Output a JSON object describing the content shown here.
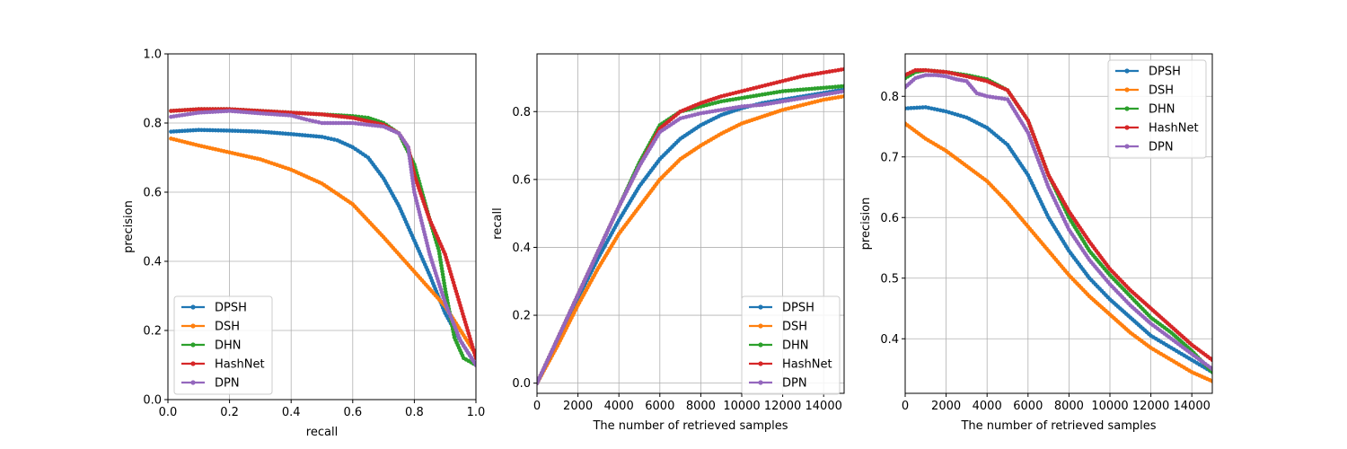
{
  "chart_data": [
    {
      "type": "line",
      "title": "",
      "xlabel": "recall",
      "ylabel": "precision",
      "xlim": [
        0.0,
        1.0
      ],
      "ylim": [
        0.0,
        1.0
      ],
      "xticks": [
        0.0,
        0.2,
        0.4,
        0.6,
        0.8,
        1.0
      ],
      "xtick_labels": [
        "0.0",
        "0.2",
        "0.4",
        "0.6",
        "0.8",
        "1.0"
      ],
      "yticks": [
        0.0,
        0.2,
        0.4,
        0.6,
        0.8,
        1.0
      ],
      "ytick_labels": [
        "0.0",
        "0.2",
        "0.4",
        "0.6",
        "0.8",
        "1.0"
      ],
      "grid": true,
      "legend_position": "lower-left",
      "series": [
        {
          "name": "DPSH",
          "color": "#1f77b4",
          "x": [
            0.01,
            0.1,
            0.2,
            0.3,
            0.4,
            0.5,
            0.55,
            0.6,
            0.65,
            0.7,
            0.75,
            0.8,
            0.85,
            0.9,
            0.95,
            1.0
          ],
          "y": [
            0.775,
            0.78,
            0.778,
            0.775,
            0.768,
            0.76,
            0.75,
            0.73,
            0.7,
            0.64,
            0.56,
            0.46,
            0.36,
            0.25,
            0.17,
            0.1
          ]
        },
        {
          "name": "DSH",
          "color": "#ff7f0e",
          "x": [
            0.01,
            0.1,
            0.2,
            0.3,
            0.4,
            0.5,
            0.6,
            0.7,
            0.8,
            0.9,
            0.95,
            1.0
          ],
          "y": [
            0.755,
            0.735,
            0.715,
            0.695,
            0.665,
            0.625,
            0.565,
            0.47,
            0.37,
            0.27,
            0.2,
            0.13
          ]
        },
        {
          "name": "DHN",
          "color": "#2ca02c",
          "x": [
            0.01,
            0.1,
            0.2,
            0.3,
            0.4,
            0.5,
            0.6,
            0.65,
            0.7,
            0.75,
            0.8,
            0.85,
            0.88,
            0.9,
            0.93,
            0.96,
            1.0
          ],
          "y": [
            0.835,
            0.84,
            0.84,
            0.835,
            0.83,
            0.825,
            0.82,
            0.815,
            0.8,
            0.77,
            0.68,
            0.52,
            0.43,
            0.32,
            0.18,
            0.12,
            0.1
          ]
        },
        {
          "name": "HashNet",
          "color": "#d62728",
          "x": [
            0.01,
            0.1,
            0.2,
            0.3,
            0.4,
            0.5,
            0.6,
            0.7,
            0.75,
            0.78,
            0.8,
            0.85,
            0.9,
            0.93,
            0.96,
            1.0
          ],
          "y": [
            0.835,
            0.84,
            0.84,
            0.835,
            0.83,
            0.825,
            0.815,
            0.795,
            0.77,
            0.73,
            0.65,
            0.52,
            0.42,
            0.33,
            0.24,
            0.12
          ]
        },
        {
          "name": "DPN",
          "color": "#9467bd",
          "x": [
            0.01,
            0.1,
            0.2,
            0.3,
            0.4,
            0.45,
            0.5,
            0.6,
            0.7,
            0.75,
            0.78,
            0.8,
            0.85,
            0.9,
            0.95,
            1.0
          ],
          "y": [
            0.818,
            0.83,
            0.835,
            0.828,
            0.822,
            0.81,
            0.8,
            0.8,
            0.79,
            0.77,
            0.73,
            0.6,
            0.42,
            0.28,
            0.17,
            0.1
          ]
        }
      ]
    },
    {
      "type": "line",
      "title": "",
      "xlabel": "The number of retrieved samples",
      "ylabel": "recall",
      "xlim": [
        0,
        15000
      ],
      "ylim": [
        -0.03,
        0.97
      ],
      "xticks": [
        0,
        2000,
        4000,
        6000,
        8000,
        10000,
        12000,
        14000
      ],
      "xtick_labels": [
        "0",
        "2000",
        "4000",
        "6000",
        "8000",
        "10000",
        "12000",
        "14000"
      ],
      "yticks": [
        0.0,
        0.2,
        0.4,
        0.6,
        0.8
      ],
      "ytick_labels": [
        "0.0",
        "0.2",
        "0.4",
        "0.6",
        "0.8"
      ],
      "grid": true,
      "legend_position": "lower-right",
      "series": [
        {
          "name": "DPSH",
          "color": "#1f77b4",
          "x": [
            0,
            1000,
            2000,
            3000,
            4000,
            5000,
            6000,
            7000,
            8000,
            9000,
            10000,
            11000,
            12000,
            13000,
            14000,
            15000
          ],
          "y": [
            0.0,
            0.12,
            0.25,
            0.37,
            0.48,
            0.58,
            0.66,
            0.72,
            0.76,
            0.79,
            0.81,
            0.825,
            0.835,
            0.845,
            0.855,
            0.865
          ]
        },
        {
          "name": "DSH",
          "color": "#ff7f0e",
          "x": [
            0,
            1000,
            2000,
            3000,
            4000,
            5000,
            6000,
            7000,
            8000,
            9000,
            10000,
            11000,
            12000,
            13000,
            14000,
            15000
          ],
          "y": [
            0.0,
            0.11,
            0.23,
            0.34,
            0.44,
            0.52,
            0.6,
            0.66,
            0.7,
            0.735,
            0.765,
            0.785,
            0.805,
            0.82,
            0.835,
            0.845
          ]
        },
        {
          "name": "DHN",
          "color": "#2ca02c",
          "x": [
            0,
            1000,
            2000,
            3000,
            4000,
            5000,
            6000,
            7000,
            8000,
            9000,
            10000,
            11000,
            12000,
            13000,
            14000,
            15000
          ],
          "y": [
            0.0,
            0.13,
            0.26,
            0.39,
            0.52,
            0.65,
            0.76,
            0.8,
            0.815,
            0.83,
            0.84,
            0.85,
            0.86,
            0.865,
            0.87,
            0.875
          ]
        },
        {
          "name": "HashNet",
          "color": "#d62728",
          "x": [
            0,
            1000,
            2000,
            3000,
            4000,
            5000,
            6000,
            7000,
            8000,
            9000,
            10000,
            11000,
            12000,
            13000,
            14000,
            15000
          ],
          "y": [
            0.0,
            0.13,
            0.26,
            0.39,
            0.52,
            0.64,
            0.75,
            0.8,
            0.825,
            0.845,
            0.86,
            0.875,
            0.89,
            0.905,
            0.915,
            0.925
          ]
        },
        {
          "name": "DPN",
          "color": "#9467bd",
          "x": [
            0,
            1000,
            2000,
            3000,
            4000,
            5000,
            6000,
            7000,
            8000,
            9000,
            10000,
            11000,
            12000,
            13000,
            14000,
            15000
          ],
          "y": [
            0.0,
            0.13,
            0.26,
            0.39,
            0.52,
            0.64,
            0.74,
            0.78,
            0.795,
            0.805,
            0.815,
            0.82,
            0.83,
            0.84,
            0.85,
            0.86
          ]
        }
      ]
    },
    {
      "type": "line",
      "title": "",
      "xlabel": "The number of retrieved samples",
      "ylabel": "precision",
      "xlim": [
        0,
        15000
      ],
      "ylim": [
        0.31,
        0.87
      ],
      "xticks": [
        0,
        2000,
        4000,
        6000,
        8000,
        10000,
        12000,
        14000
      ],
      "xtick_labels": [
        "0",
        "2000",
        "4000",
        "6000",
        "8000",
        "10000",
        "12000",
        "14000"
      ],
      "yticks": [
        0.4,
        0.5,
        0.6,
        0.7,
        0.8
      ],
      "ytick_labels": [
        "0.4",
        "0.5",
        "0.6",
        "0.7",
        "0.8"
      ],
      "grid": true,
      "legend_position": "upper-right",
      "series": [
        {
          "name": "DPSH",
          "color": "#1f77b4",
          "x": [
            0,
            1000,
            2000,
            3000,
            4000,
            5000,
            6000,
            7000,
            8000,
            9000,
            10000,
            11000,
            12000,
            13000,
            14000,
            15000
          ],
          "y": [
            0.78,
            0.782,
            0.775,
            0.765,
            0.748,
            0.72,
            0.67,
            0.6,
            0.545,
            0.5,
            0.465,
            0.435,
            0.405,
            0.385,
            0.365,
            0.345
          ]
        },
        {
          "name": "DSH",
          "color": "#ff7f0e",
          "x": [
            0,
            1000,
            2000,
            3000,
            4000,
            5000,
            6000,
            7000,
            8000,
            9000,
            10000,
            11000,
            12000,
            13000,
            14000,
            15000
          ],
          "y": [
            0.755,
            0.73,
            0.71,
            0.685,
            0.66,
            0.625,
            0.585,
            0.545,
            0.505,
            0.47,
            0.44,
            0.41,
            0.385,
            0.365,
            0.345,
            0.33
          ]
        },
        {
          "name": "DHN",
          "color": "#2ca02c",
          "x": [
            0,
            500,
            1000,
            2000,
            3000,
            4000,
            5000,
            6000,
            7000,
            8000,
            9000,
            10000,
            11000,
            12000,
            13000,
            14000,
            15000
          ],
          "y": [
            0.83,
            0.84,
            0.843,
            0.84,
            0.835,
            0.828,
            0.81,
            0.76,
            0.67,
            0.6,
            0.545,
            0.505,
            0.47,
            0.435,
            0.41,
            0.38,
            0.345
          ]
        },
        {
          "name": "HashNet",
          "color": "#d62728",
          "x": [
            0,
            500,
            1000,
            2000,
            3000,
            4000,
            5000,
            6000,
            7000,
            8000,
            9000,
            10000,
            11000,
            12000,
            13000,
            14000,
            15000
          ],
          "y": [
            0.835,
            0.843,
            0.843,
            0.84,
            0.833,
            0.825,
            0.81,
            0.76,
            0.67,
            0.61,
            0.56,
            0.515,
            0.48,
            0.45,
            0.42,
            0.39,
            0.365
          ]
        },
        {
          "name": "DPN",
          "color": "#9467bd",
          "x": [
            0,
            500,
            1000,
            1500,
            2000,
            2500,
            3000,
            3500,
            4000,
            5000,
            6000,
            7000,
            8000,
            9000,
            10000,
            11000,
            12000,
            13000,
            14000,
            15000
          ],
          "y": [
            0.815,
            0.83,
            0.835,
            0.835,
            0.833,
            0.828,
            0.825,
            0.805,
            0.8,
            0.795,
            0.74,
            0.65,
            0.58,
            0.53,
            0.49,
            0.455,
            0.425,
            0.4,
            0.375,
            0.35
          ]
        }
      ]
    }
  ]
}
